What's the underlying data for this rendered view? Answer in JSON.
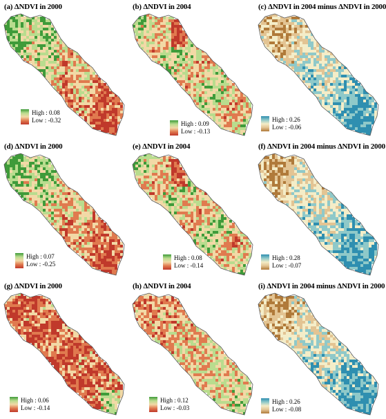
{
  "figure": {
    "panels": [
      {
        "title": "(a) ΔNDVI in 2000",
        "high": "High : 0.08",
        "low": "Low : -0.32",
        "palette": "green-red",
        "pattern": "a"
      },
      {
        "title": "(b) ΔNDVI in 2004",
        "high": "High : 0.09",
        "low": "Low : -0.13",
        "palette": "green-red",
        "pattern": "b"
      },
      {
        "title": "(c) ΔNDVI in 2004 minus ΔNDVI in 2000",
        "high": "High : 0.26",
        "low": "Low : -0.06",
        "palette": "blue-brown",
        "pattern": "c"
      },
      {
        "title": "(d) ΔNDVI in 2000",
        "high": "High : 0.07",
        "low": "Low : -0.25",
        "palette": "green-red",
        "pattern": "a"
      },
      {
        "title": "(e) ΔNDVI in 2004",
        "high": "High : 0.08",
        "low": "Low : -0.14",
        "palette": "green-red",
        "pattern": "b"
      },
      {
        "title": "(f) ΔNDVI in 2004 minus ΔNDVI in 2000",
        "high": "High : 0.28",
        "low": "Low : -0.07",
        "palette": "blue-brown",
        "pattern": "c"
      },
      {
        "title": "(g) ΔNDVI in 2000",
        "high": "High : 0.06",
        "low": "Low : -0.14",
        "palette": "green-red",
        "pattern": "g"
      },
      {
        "title": "(h) ΔNDVI in 2004",
        "high": "High : 0.12",
        "low": "Low : -0.03",
        "palette": "green-red",
        "pattern": "h"
      },
      {
        "title": "(i) ΔNDVI in 2004 minus ΔNDVI in 2000",
        "high": "High : 0.26",
        "low": "Low : -0.08",
        "palette": "blue-brown",
        "pattern": "c"
      }
    ],
    "colors": {
      "green_red": [
        "#c0392b",
        "#e07a4f",
        "#f2d9a6",
        "#b9dc8e",
        "#3f9b3a"
      ],
      "blue_brown": [
        "#b07a3a",
        "#e3c493",
        "#f4edc8",
        "#8fc9c9",
        "#2f8fb0"
      ]
    }
  }
}
